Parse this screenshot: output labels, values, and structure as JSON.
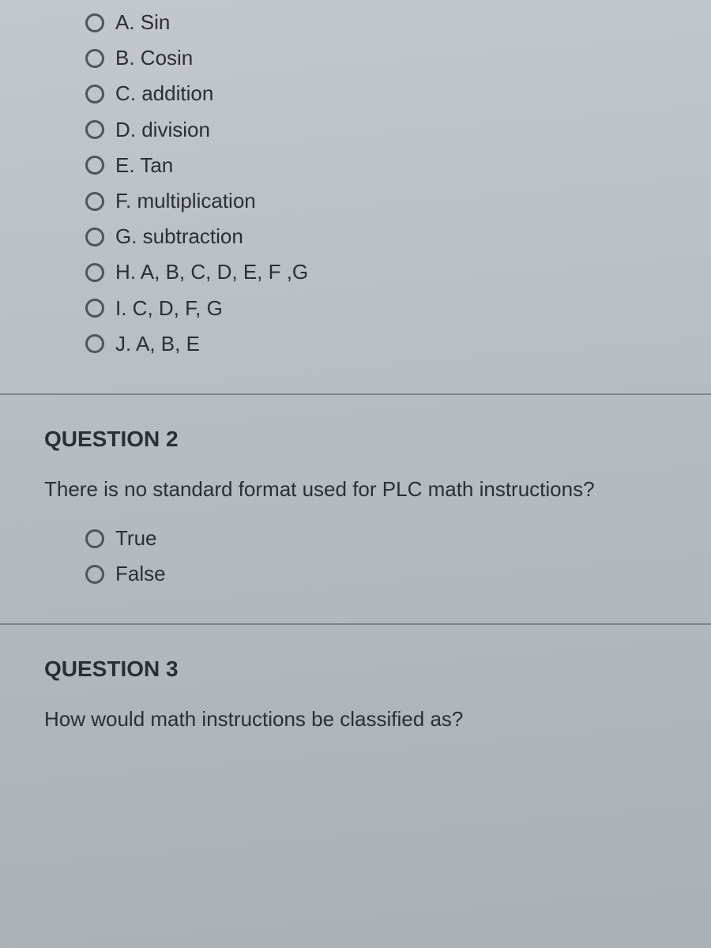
{
  "colors": {
    "background_top": "#c2c8cd",
    "background_bottom": "#a8b0b6",
    "text": "#2a2f33",
    "radio_border": "#4f565b",
    "divider": "#7f878d"
  },
  "typography": {
    "base_font": "Arial",
    "heading_size_pt": 21,
    "prompt_size_pt": 20,
    "option_size_pt": 20,
    "heading_weight": 700
  },
  "question1": {
    "options": [
      "A. Sin",
      "B. Cosin",
      "C. addition",
      "D. division",
      "E. Tan",
      "F. multiplication",
      "G. subtraction",
      "H. A, B, C, D, E, F ,G",
      "I. C, D, F, G",
      "J. A, B, E"
    ]
  },
  "question2": {
    "heading": "QUESTION 2",
    "prompt": "There is no standard format used for PLC math instructions?",
    "options": [
      "True",
      "False"
    ]
  },
  "question3": {
    "heading": "QUESTION 3",
    "prompt": "How would math instructions be classified as?"
  }
}
